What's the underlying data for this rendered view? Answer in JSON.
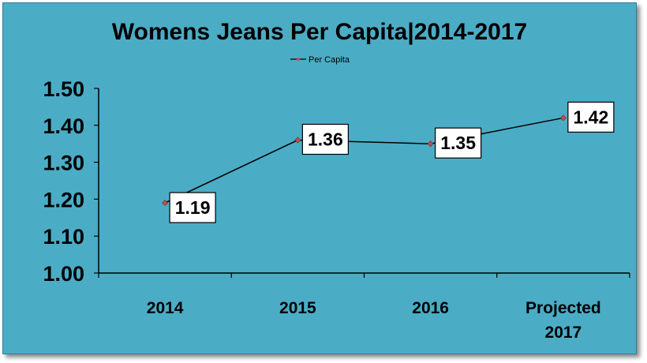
{
  "chart_data": {
    "type": "line",
    "title": "Womens Jeans Per Capita|2014-2017",
    "categories": [
      "2014",
      "2015",
      "2016",
      "Projected 2017"
    ],
    "series": [
      {
        "name": "Per Capita",
        "values": [
          1.19,
          1.36,
          1.35,
          1.42
        ]
      }
    ],
    "data_labels": [
      "1.19",
      "1.36",
      "1.35",
      "1.42"
    ],
    "y_tick_labels": [
      "1.00",
      "1.10",
      "1.20",
      "1.30",
      "1.40",
      "1.50"
    ],
    "ylim": [
      1.0,
      1.5
    ],
    "grid": false,
    "legend_position": "top-center",
    "colors": {
      "background": "#4bacc6",
      "line": "#000000",
      "marker": "#c0504d",
      "label_box": "#ffffff"
    }
  }
}
